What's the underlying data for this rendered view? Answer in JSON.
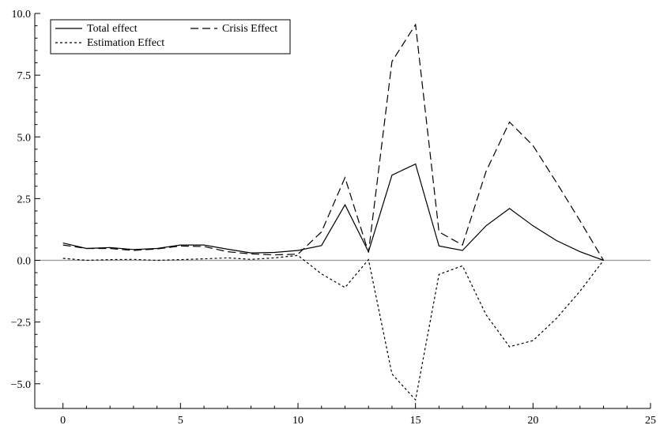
{
  "chart_data": {
    "type": "line",
    "title": "",
    "xlabel": "",
    "ylabel": "",
    "xlim": [
      -1.2,
      25
    ],
    "ylim": [
      -6.0,
      10.0
    ],
    "x_ticks": [
      0,
      5,
      10,
      15,
      20,
      25
    ],
    "x_tick_labels": [
      "0",
      "5",
      "10",
      "15",
      "20",
      "25"
    ],
    "y_ticks": [
      10.0,
      7.5,
      5.0,
      2.5,
      0.0,
      -2.5,
      -5.0
    ],
    "y_tick_labels": [
      "10.0",
      "7.5",
      "5.0",
      "2.5",
      "0.0",
      "−2.5",
      "−5.0"
    ],
    "grid": false,
    "zero_line": true,
    "zero_line_color": "#999999",
    "legend_position": "top-left",
    "x": [
      0,
      1,
      2,
      3,
      4,
      5,
      6,
      7,
      8,
      9,
      10,
      11,
      12,
      13,
      14,
      15,
      16,
      17,
      18,
      19,
      20,
      21,
      22,
      23
    ],
    "series": [
      {
        "name": "Total effect",
        "style": "solid",
        "color": "#000000",
        "values": [
          0.7,
          0.48,
          0.52,
          0.44,
          0.48,
          0.62,
          0.62,
          0.45,
          0.3,
          0.32,
          0.4,
          0.6,
          2.25,
          0.35,
          3.45,
          3.9,
          0.58,
          0.4,
          1.4,
          2.1,
          1.4,
          0.8,
          0.35,
          0.0
        ]
      },
      {
        "name": "Crisis Effect",
        "style": "dashed",
        "color": "#000000",
        "values": [
          0.62,
          0.48,
          0.48,
          0.4,
          0.46,
          0.58,
          0.56,
          0.35,
          0.26,
          0.22,
          0.25,
          1.15,
          3.35,
          0.32,
          8.05,
          9.55,
          1.15,
          0.62,
          3.6,
          5.6,
          4.65,
          3.15,
          1.6,
          0.0
        ]
      },
      {
        "name": "Estimation Effect",
        "style": "dotted",
        "color": "#000000",
        "values": [
          0.08,
          0.0,
          0.03,
          0.04,
          0.0,
          0.03,
          0.06,
          0.1,
          0.04,
          0.1,
          0.2,
          -0.55,
          -1.1,
          0.03,
          -4.6,
          -5.65,
          -0.57,
          -0.22,
          -2.2,
          -3.5,
          -3.25,
          -2.35,
          -1.25,
          0.0
        ]
      }
    ]
  }
}
